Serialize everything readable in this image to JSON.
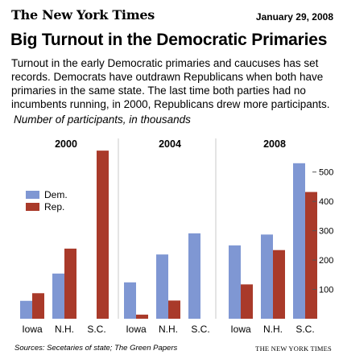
{
  "header": {
    "masthead": "The New York Times",
    "date": "January 29, 2008",
    "headline": "Big Turnout in the Democratic Primaries",
    "intro": "Turnout in the early Democratic primaries and caucuses has set records. Democrats have outdrawn Republicans when both have primaries in the same state. The last time both parties had no incumbents running, in 2000, Republicans drew more participants."
  },
  "chart_data": {
    "type": "bar",
    "subtitle": "Number of participants, in thousands",
    "categories": [
      "Iowa",
      "N.H.",
      "S.C."
    ],
    "ylim": [
      0,
      620
    ],
    "yticks": [
      100,
      200,
      300,
      400,
      500
    ],
    "legend": {
      "placement": "left, inside first panel",
      "entries": [
        "Dem.",
        "Rep."
      ]
    },
    "colors": {
      "dem": "#7f97d3",
      "rep": "#a93a2a"
    },
    "panels": [
      {
        "title": "2000",
        "series": [
          {
            "name": "Dem.",
            "values": [
              61,
              154,
              null
            ]
          },
          {
            "name": "Rep.",
            "values": [
              87,
              239,
              573
            ]
          }
        ]
      },
      {
        "title": "2004",
        "series": [
          {
            "name": "Dem.",
            "values": [
              124,
              219,
              291
            ]
          },
          {
            "name": "Rep.",
            "values": [
              14,
              62,
              null
            ]
          }
        ]
      },
      {
        "title": "2008",
        "series": [
          {
            "name": "Dem.",
            "values": [
              250,
              287,
              530
            ]
          },
          {
            "name": "Rep.",
            "values": [
              117,
              234,
              432
            ]
          }
        ]
      }
    ]
  },
  "footer": {
    "sources": "Sources: Secetaries of state; The Green Papers",
    "credit": "THE NEW YORK TIMES"
  }
}
